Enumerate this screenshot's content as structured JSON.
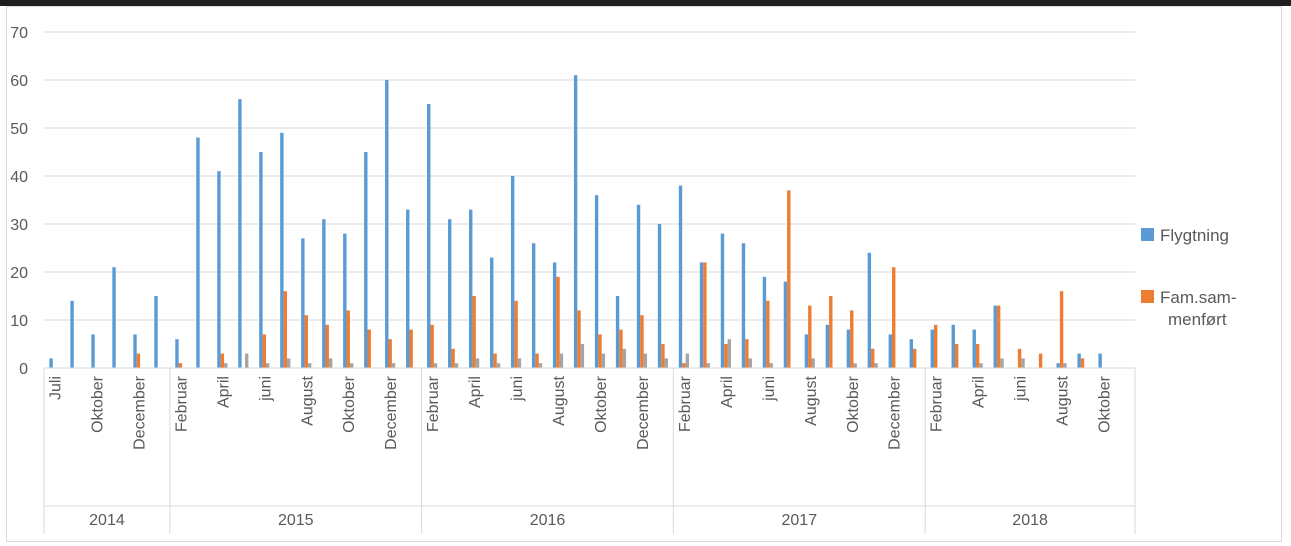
{
  "chart_data": {
    "type": "bar",
    "ylim": [
      0,
      70
    ],
    "y_ticks": [
      0,
      10,
      20,
      30,
      40,
      50,
      60,
      70
    ],
    "grid": true,
    "legend_position": "right",
    "years": [
      {
        "label": "2014",
        "count": 6
      },
      {
        "label": "2015",
        "count": 12
      },
      {
        "label": "2016",
        "count": 12
      },
      {
        "label": "2017",
        "count": 12
      },
      {
        "label": "2018",
        "count": 10
      }
    ],
    "categories": [
      "Juli",
      "",
      "Oktober",
      "",
      "December",
      "",
      "Februar",
      "",
      "April",
      "",
      "juni",
      "",
      "August",
      "",
      "Oktober",
      "",
      "December",
      "",
      "Februar",
      "",
      "April",
      "",
      "juni",
      "",
      "August",
      "",
      "Oktober",
      "",
      "December",
      "",
      "Februar",
      "",
      "April",
      "",
      "juni",
      "",
      "August",
      "",
      "Oktober",
      "",
      "December",
      "",
      "Februar",
      "",
      "April",
      "",
      "juni",
      "",
      "August",
      "",
      "Oktober",
      ""
    ],
    "series": [
      {
        "name": "Flygtning",
        "color": "#5b9bd5",
        "values": [
          2,
          14,
          7,
          21,
          7,
          15,
          6,
          48,
          41,
          56,
          45,
          49,
          27,
          31,
          28,
          45,
          60,
          33,
          55,
          31,
          33,
          23,
          40,
          26,
          22,
          61,
          36,
          15,
          34,
          30,
          38,
          22,
          28,
          26,
          19,
          18,
          7,
          9,
          8,
          24,
          7,
          6,
          8,
          9,
          8,
          13,
          0,
          0,
          1,
          3,
          3,
          0
        ]
      },
      {
        "name": "Fam.sam-\nmenført",
        "color": "#ed7d31",
        "values": [
          0,
          0,
          0,
          0,
          3,
          0,
          1,
          0,
          3,
          0,
          7,
          16,
          11,
          9,
          12,
          8,
          6,
          8,
          9,
          4,
          15,
          3,
          14,
          3,
          19,
          12,
          7,
          8,
          11,
          5,
          1,
          22,
          5,
          6,
          14,
          37,
          13,
          15,
          12,
          4,
          21,
          4,
          9,
          5,
          5,
          13,
          4,
          3,
          16,
          2,
          0,
          0
        ]
      },
      {
        "color": "#a5a5a5",
        "values": [
          0,
          0,
          0,
          0,
          0,
          0,
          0,
          0,
          1,
          3,
          1,
          2,
          1,
          2,
          1,
          0,
          1,
          0,
          1,
          1,
          2,
          1,
          2,
          1,
          3,
          5,
          3,
          4,
          3,
          2,
          3,
          1,
          6,
          2,
          1,
          0,
          2,
          0,
          1,
          1,
          0,
          0,
          0,
          0,
          1,
          2,
          2,
          0,
          1,
          0,
          0,
          0
        ]
      }
    ]
  }
}
